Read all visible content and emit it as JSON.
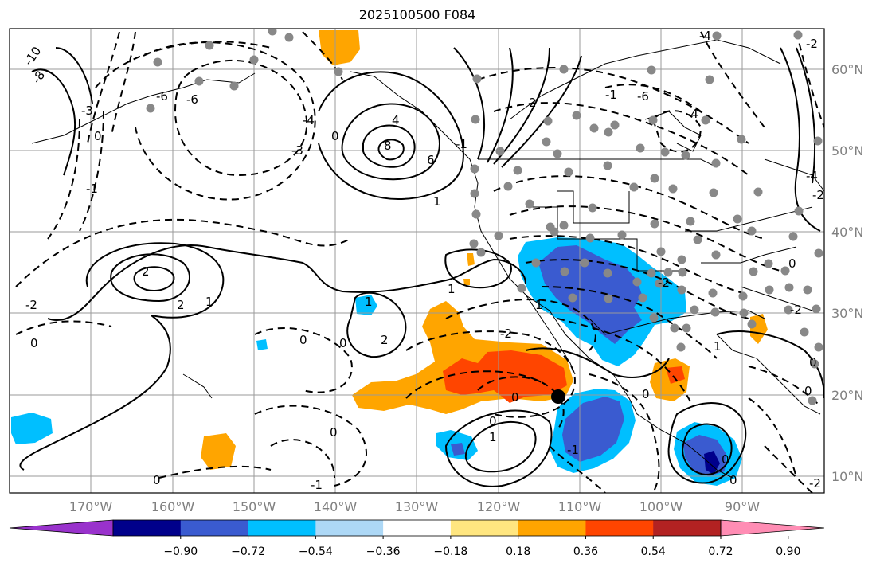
{
  "title": "2025100500 F084",
  "longitude_labels": [
    "170°W",
    "160°W",
    "150°W",
    "140°W",
    "130°W",
    "120°W",
    "110°W",
    "100°W",
    "90°W"
  ],
  "latitude_labels": [
    "60°N",
    "50°N",
    "40°N",
    "30°N",
    "20°N",
    "10°N"
  ],
  "colorbar": {
    "tick_labels": [
      "−0.90",
      "−0.72",
      "−0.54",
      "−0.36",
      "−0.18",
      "0.18",
      "0.36",
      "0.54",
      "0.72",
      "0.90"
    ],
    "colors": [
      "#9932cc",
      "#00008b",
      "#3a5bd0",
      "#00bfff",
      "#add8f6",
      "#ffffff",
      "#ffe680",
      "#ffa500",
      "#ff4500",
      "#b22222",
      "#ff8db4"
    ]
  },
  "contour_labels": [
    "-10",
    "-8",
    "-6",
    "-4",
    "-3",
    "-2",
    "-1",
    "0",
    "1",
    "2",
    "4",
    "6",
    "8"
  ],
  "marker": "black-dot"
}
